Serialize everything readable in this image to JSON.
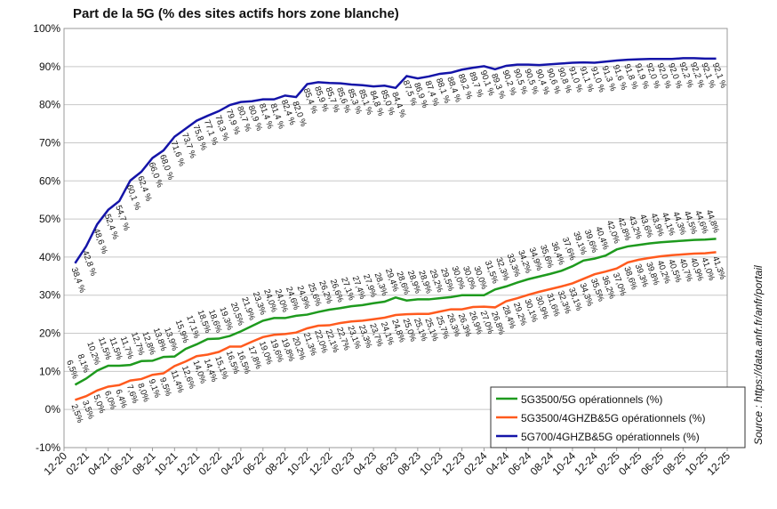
{
  "chart_data": {
    "type": "line",
    "title": "Part de la 5G (% des sites actifs hors zone blanche)",
    "source": "Source : https://data.anfr.fr/anfr/portail",
    "categories": [
      "12-20",
      null,
      "02-21",
      null,
      "04-21",
      null,
      "06-21",
      null,
      "08-21",
      null,
      "10-21",
      null,
      "12-21",
      null,
      "02-22",
      null,
      "04-22",
      null,
      "06-22",
      null,
      "08-22",
      null,
      "10-22",
      null,
      "12-22",
      null,
      "02-23",
      null,
      "04-23",
      null,
      "06-23",
      null,
      "08-23",
      null,
      "10-23",
      null,
      "12-23",
      null,
      "02-24",
      null,
      "04-24",
      null,
      "06-24",
      null,
      "08-24",
      null,
      "10-24",
      null,
      "12-24",
      null,
      "02-25",
      null,
      "04-25",
      null,
      "06-25",
      null,
      "08-25",
      null,
      "10-25",
      null,
      "12-25"
    ],
    "ylim": [
      -10,
      100
    ],
    "yticks": [
      {
        "value": -10,
        "label": "-10%"
      },
      {
        "value": 0,
        "label": "0%"
      },
      {
        "value": 10,
        "label": "10%"
      },
      {
        "value": 20,
        "label": "20%"
      },
      {
        "value": 30,
        "label": "30%"
      },
      {
        "value": 40,
        "label": "40%"
      },
      {
        "value": 50,
        "label": "50%"
      },
      {
        "value": 60,
        "label": "60%"
      },
      {
        "value": 70,
        "label": "70%"
      },
      {
        "value": 80,
        "label": "80%"
      },
      {
        "value": 90,
        "label": "90%"
      },
      {
        "value": 100,
        "label": "100%"
      }
    ],
    "grid": true,
    "legend": "lower right",
    "series": [
      {
        "name": "5G3500/5G opérationnels (%)",
        "color": "#1e9a1e",
        "values": [
          null,
          6.5,
          8.1,
          10.2,
          11.5,
          11.5,
          11.7,
          12.7,
          12.8,
          13.8,
          13.9,
          15.9,
          17.1,
          18.5,
          18.6,
          19.3,
          20.5,
          21.9,
          23.3,
          24.0,
          24.0,
          24.6,
          24.9,
          25.6,
          26.2,
          26.6,
          27.1,
          27.4,
          27.9,
          28.3,
          29.4,
          28.6,
          28.9,
          28.9,
          29.2,
          29.5,
          30.0,
          30.0,
          30.0,
          31.5,
          32.3,
          33.3,
          34.2,
          34.9,
          35.6,
          36.4,
          37.6,
          39.1,
          39.6,
          40.4,
          42.0,
          42.8,
          43.2,
          43.6,
          43.9,
          44.1,
          44.3,
          44.5,
          44.6,
          44.8,
          null
        ],
        "value_labels": [
          null,
          "6,5%",
          "8,1%",
          "10,2%",
          "11,5%",
          "11,5%",
          "11,7%",
          "12,7%",
          "12,8%",
          "13,8%",
          "13,9%",
          "15,9%",
          "17,1%",
          "18,5%",
          "18,6%",
          "19,3%",
          "20,5%",
          "21,9%",
          "23,3%",
          "24,0%",
          "24,0%",
          "24,6%",
          "24,9%",
          "25,6%",
          "26,2%",
          "26,6%",
          "27,1%",
          "27,4%",
          "27,9%",
          "28,3%",
          "29,4%",
          "28,6%",
          "28,9%",
          "28,9%",
          "29,2%",
          "29,5%",
          "30,0%",
          "30,0%",
          "30,0%",
          "31,5%",
          "32,3%",
          "33,3%",
          "34,2%",
          "34,9%",
          "35,6%",
          "36,4%",
          "37,6%",
          "39,1%",
          "39,6%",
          "40,4%",
          "42,0%",
          "42,8%",
          "43,2%",
          "43,6%",
          "43,9%",
          "44,1%",
          "44,3%",
          "44,5%",
          "44,6%",
          "44,8%",
          null
        ]
      },
      {
        "name": "5G3500/4GHZB&5G opérationnels (%)",
        "color": "#ff5a1e",
        "values": [
          null,
          2.5,
          3.5,
          5.0,
          6.0,
          6.4,
          7.6,
          8.0,
          9.1,
          9.5,
          11.4,
          12.6,
          14.0,
          14.4,
          15.1,
          16.5,
          16.5,
          17.8,
          19.0,
          19.6,
          19.8,
          20.2,
          21.3,
          22.0,
          22.1,
          22.7,
          23.1,
          23.3,
          23.7,
          24.1,
          24.8,
          25.0,
          25.1,
          25.1,
          25.7,
          26.3,
          26.3,
          26.9,
          27.0,
          26.8,
          28.4,
          29.2,
          30.1,
          30.9,
          31.6,
          32.3,
          33.1,
          34.3,
          35.5,
          36.2,
          37.0,
          38.6,
          39.3,
          39.8,
          40.2,
          40.5,
          40.7,
          40.9,
          41.0,
          41.3,
          null
        ],
        "value_labels": [
          null,
          "2,5%",
          "3,5%",
          "5,0%",
          "6,0%",
          "6,4%",
          "7,6%",
          "8,0%",
          "9,1%",
          "9,5%",
          "11,4%",
          "12,6%",
          "14,0%",
          "14,4%",
          "15,1%",
          "16,5%",
          "16,5%",
          "17,8%",
          "19,0%",
          "19,6%",
          "19,8%",
          "20,2%",
          "21,3%",
          "22,0%",
          "22,1%",
          "22,7%",
          "23,1%",
          "23,3%",
          "23,7%",
          "24,1%",
          "24,8%",
          "25,0%",
          "25,1%",
          "25,1%",
          "25,7%",
          "26,3%",
          "26,3%",
          "26,9%",
          "27,0%",
          "26,8%",
          "28,4%",
          "29,2%",
          "30,1%",
          "30,9%",
          "31,6%",
          "32,3%",
          "33,1%",
          "34,3%",
          "35,5%",
          "36,2%",
          "37,0%",
          "38,6%",
          "39,3%",
          "39,8%",
          "40,2%",
          "40,5%",
          "40,7%",
          "40,9%",
          "41,0%",
          "41,3%",
          null
        ]
      },
      {
        "name": "5G700/4GHZB&5G opérationnels (%)",
        "color": "#1414a8",
        "values": [
          null,
          38.4,
          42.8,
          48.6,
          52.4,
          54.7,
          60.1,
          62.4,
          66.0,
          68.0,
          71.6,
          73.7,
          75.8,
          77.1,
          78.3,
          79.9,
          80.7,
          80.9,
          81.4,
          81.4,
          82.4,
          82.0,
          85.4,
          85.9,
          85.7,
          85.6,
          85.3,
          85.1,
          84.8,
          85.0,
          84.4,
          87.5,
          86.9,
          87.4,
          88.1,
          88.4,
          89.2,
          89.7,
          90.1,
          89.3,
          90.2,
          90.5,
          90.5,
          90.4,
          90.6,
          90.8,
          91.0,
          91.1,
          91.0,
          91.3,
          91.6,
          91.8,
          91.9,
          92.0,
          92.0,
          92.0,
          92.2,
          92.2,
          92.1,
          92.1,
          null
        ],
        "value_labels": [
          null,
          "38,4 %",
          "42,8 %",
          "48,6 %",
          "52,4 %",
          "54,7 %",
          "60,1 %",
          "62,4 %",
          "66,0 %",
          "68,0 %",
          "71,6 %",
          "73,7 %",
          "75,8 %",
          "77,1 %",
          "78,3 %",
          "79,9 %",
          "80,7 %",
          "80,9 %",
          "81,4 %",
          "81,4 %",
          "82,4 %",
          "82,0 %",
          "85,4 %",
          "85,9 %",
          "85,7 %",
          "85,6 %",
          "85,3 %",
          "85,1 %",
          "84,8 %",
          "85,0 %",
          "84,4 %",
          "87,5 %",
          "86,9 %",
          "87,4 %",
          "88,1 %",
          "88,4 %",
          "89,2 %",
          "89,7 %",
          "90,1 %",
          "89,3 %",
          "90,2 %",
          "90,5 %",
          "90,5 %",
          "90,4 %",
          "90,6 %",
          "90,8 %",
          "91,0 %",
          "91,1 %",
          "91,0 %",
          "91,3 %",
          "91,6 %",
          "91,8 %",
          "91,9 %",
          "92,0 %",
          "92,0 %",
          "92,0 %",
          "92,2 %",
          "92,2 %",
          "92,1 %",
          "92,1 %",
          null
        ]
      }
    ]
  }
}
